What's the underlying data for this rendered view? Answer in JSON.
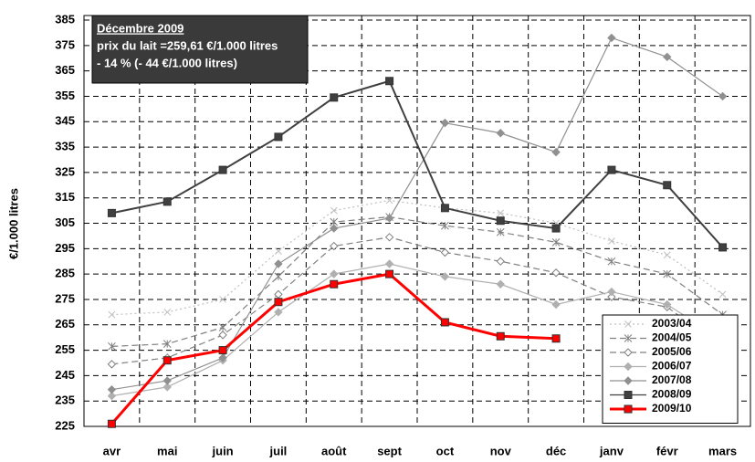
{
  "chart_data": {
    "type": "line",
    "y_label": "€/1.000 litres",
    "annotation": [
      "Décembre   2009",
      "prix du lait =259,61 €/1.000 litres",
      "- 14 % (- 44 €/1.000 litres)"
    ],
    "categories": [
      "avr",
      "mai",
      "juin",
      "juil",
      "août",
      "sept",
      "oct",
      "nov",
      "déc",
      "janv",
      "févr",
      "mars"
    ],
    "ylim": [
      225,
      385
    ],
    "yticks": [
      225,
      235,
      245,
      255,
      265,
      275,
      285,
      295,
      305,
      315,
      325,
      335,
      345,
      355,
      365,
      375,
      385
    ],
    "grid": true,
    "legend": "lower right",
    "series": [
      {
        "name": "2003/04",
        "color": "#c0c0c0",
        "line_style": "dotted",
        "marker": "x",
        "values": [
          269,
          270,
          275,
          294,
          310,
          314,
          311,
          309,
          305,
          298,
          292.5,
          277
        ]
      },
      {
        "name": "2004/05",
        "color": "#808080",
        "line_style": "dashed",
        "marker": "star",
        "values": [
          256.5,
          257.5,
          264,
          284,
          305.5,
          307.5,
          304,
          301.5,
          297.5,
          290,
          285,
          269
        ]
      },
      {
        "name": "2005/06",
        "color": "#808080",
        "line_style": "dashed",
        "marker": "diamond-open",
        "values": [
          249.5,
          252,
          261,
          277,
          296,
          299.5,
          293.5,
          290,
          285.5,
          276,
          272,
          256
        ]
      },
      {
        "name": "2006/07",
        "color": "#b0b0b0",
        "line_style": "solid",
        "marker": "diamond",
        "values": [
          237,
          240.5,
          251,
          270,
          285,
          289,
          284,
          281,
          273,
          278,
          273,
          259
        ]
      },
      {
        "name": "2007/08",
        "color": "#909090",
        "line_style": "solid",
        "marker": "diamond",
        "values": [
          239.5,
          243,
          252,
          289,
          303,
          307,
          344.5,
          340.5,
          333,
          378,
          370.5,
          355
        ]
      },
      {
        "name": "2008/09",
        "color": "#404040",
        "line_style": "solid",
        "marker": "square",
        "values": [
          309,
          313.5,
          326,
          339,
          354.5,
          361,
          311,
          306,
          303,
          326,
          320,
          295.5
        ]
      },
      {
        "name": "2009/10",
        "color": "#ff0000",
        "line_style": "solid",
        "marker": "square",
        "values": [
          226,
          251,
          255,
          274,
          281,
          285,
          266,
          260.5,
          259.6,
          null,
          null,
          null
        ]
      }
    ]
  }
}
